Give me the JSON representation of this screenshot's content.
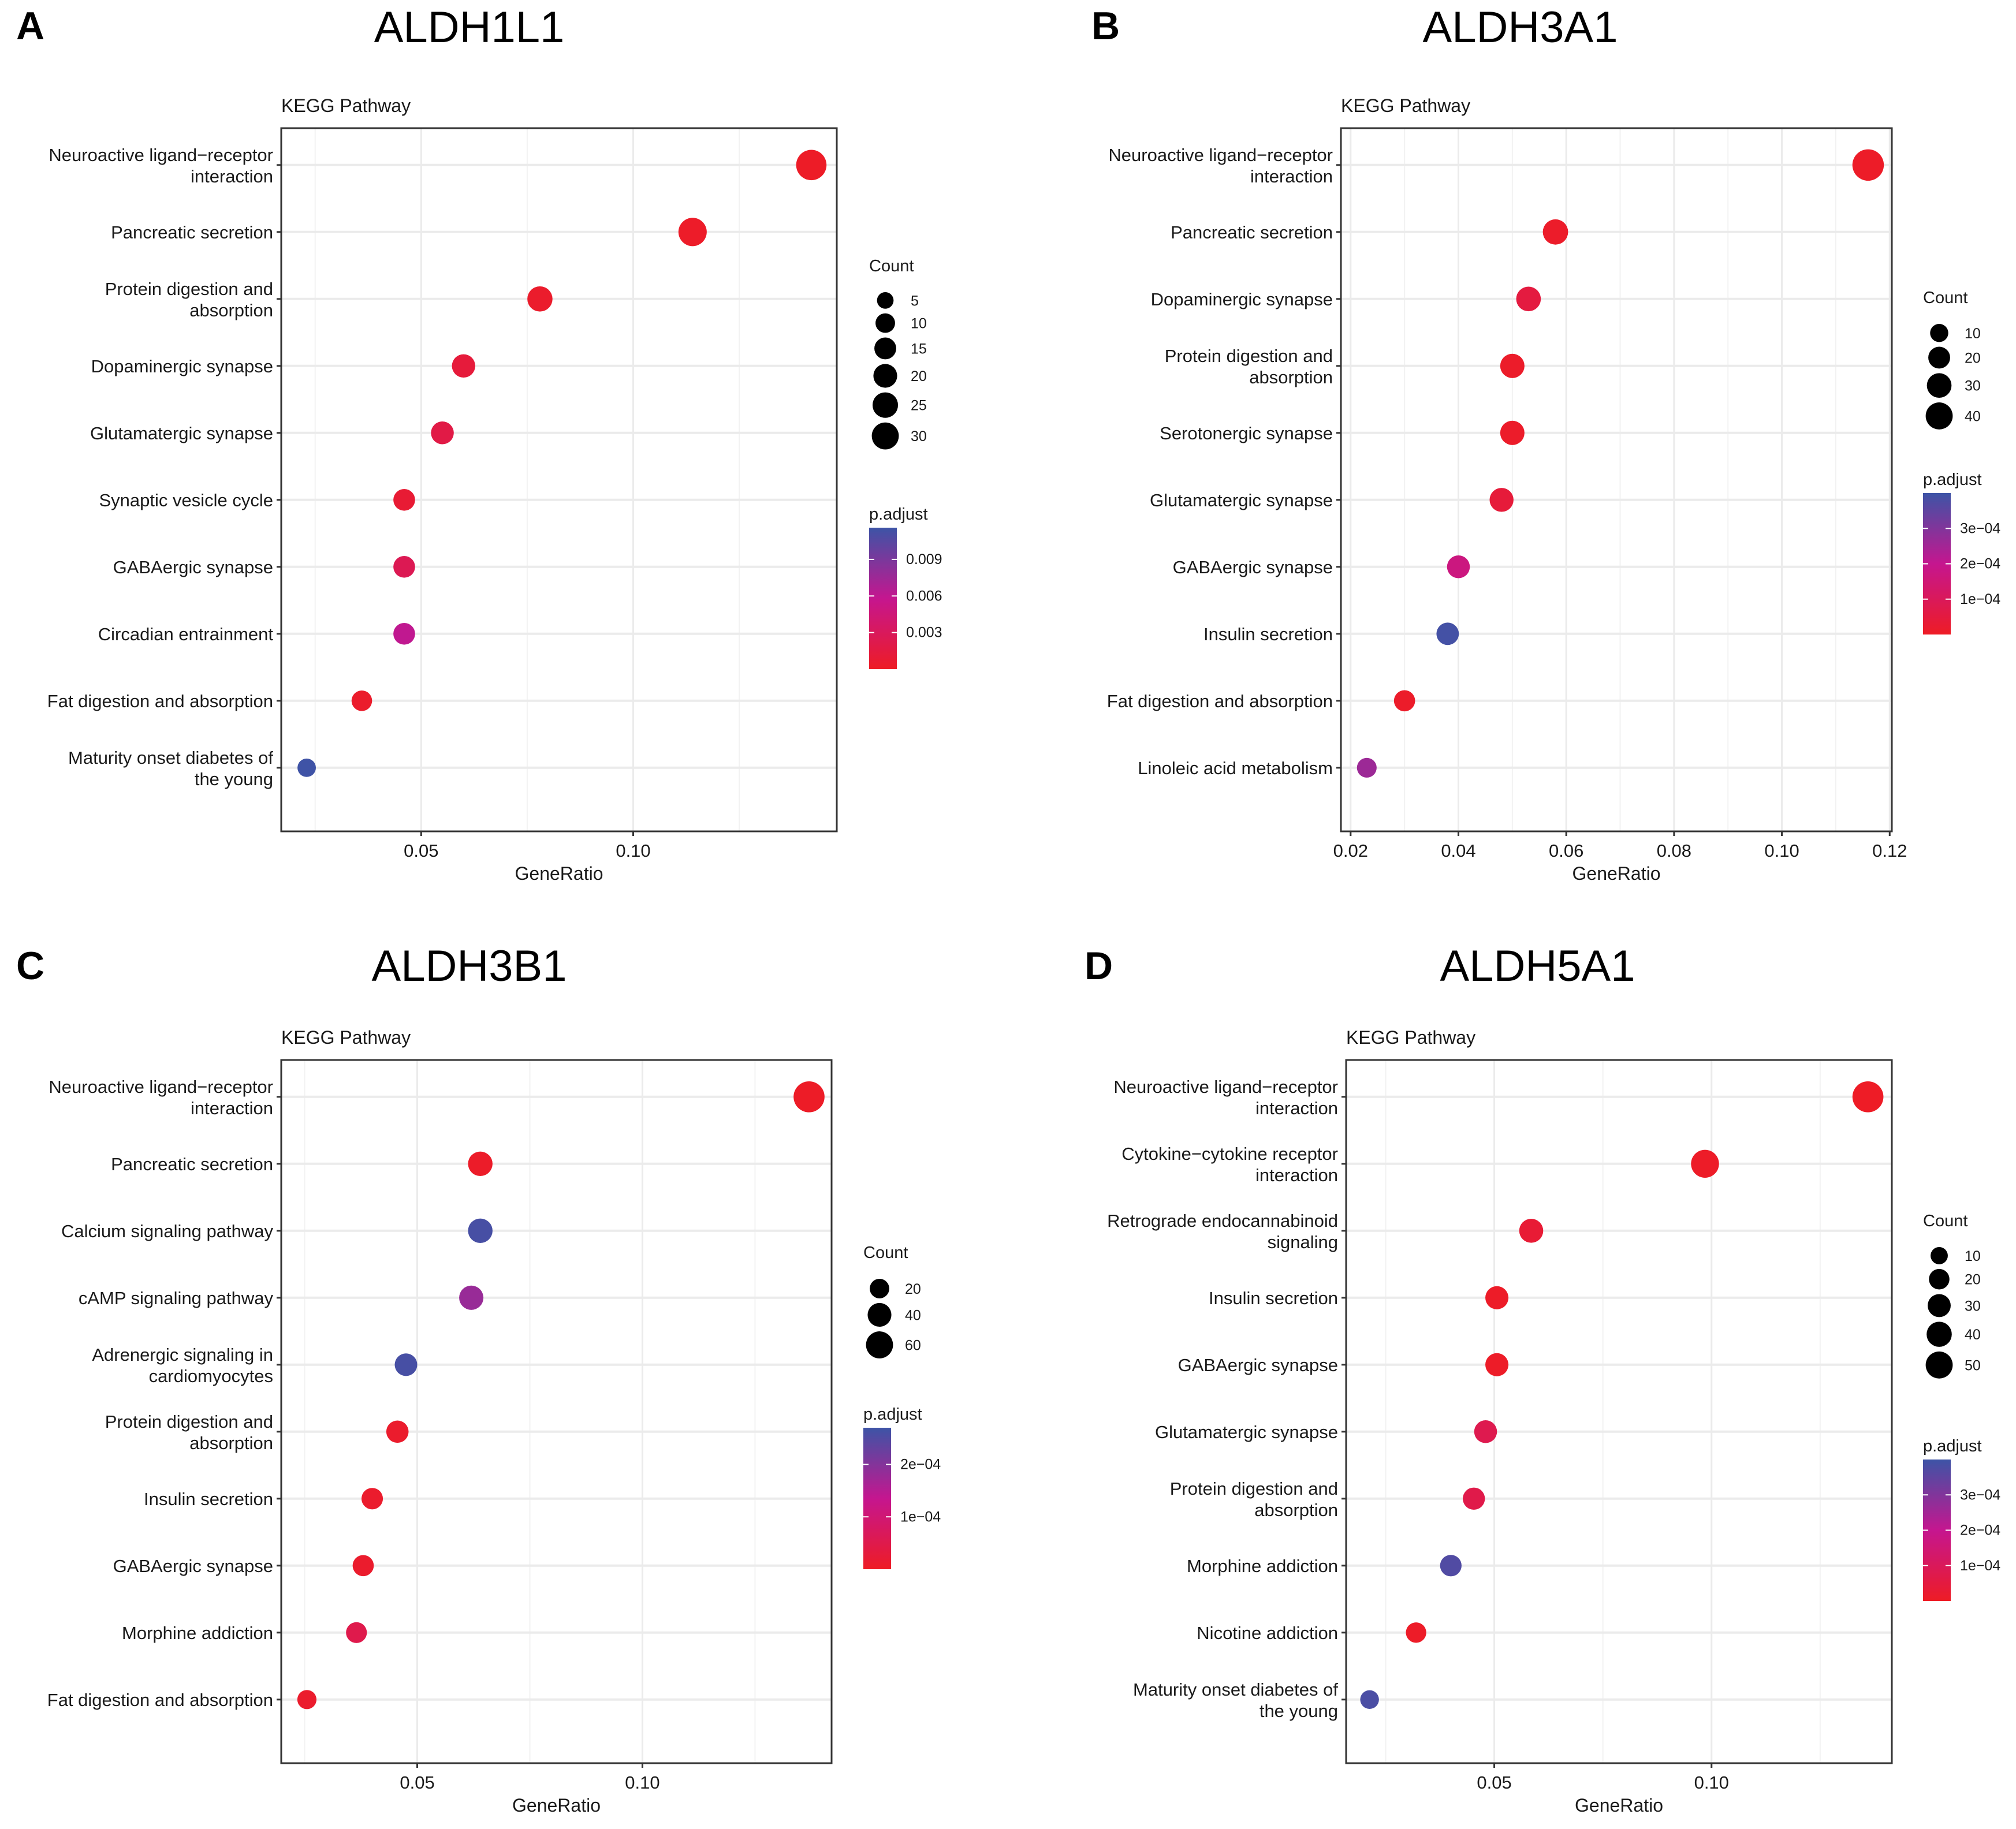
{
  "chart_data": [
    {
      "panel": "A",
      "type": "scatter",
      "title": "ALDH1L1",
      "ylabel": "KEGG Pathway",
      "xlabel": "GeneRatio",
      "xlim": [
        0.017,
        0.148
      ],
      "xticks": [
        0.05,
        0.1
      ],
      "xtick_labels": [
        "0.05",
        "0.10"
      ],
      "xminor": [
        0.025,
        0.075,
        0.125
      ],
      "grid": true,
      "categories": [
        "Neuroactive ligand−receptor\ninteraction",
        "Pancreatic secretion",
        "Protein digestion and\nabsorption",
        "Dopaminergic synapse",
        "Glutamatergic synapse",
        "Synaptic vesicle cycle",
        "GABAergic synapse",
        "Circadian entrainment",
        "Fat digestion and absorption",
        "Maturity onset diabetes of\nthe young"
      ],
      "gene_ratio": [
        0.142,
        0.114,
        0.078,
        0.06,
        0.055,
        0.046,
        0.046,
        0.046,
        0.036,
        0.023
      ],
      "count": [
        31,
        25,
        17,
        13,
        12,
        10,
        10,
        10,
        8,
        5
      ],
      "p_adjust": [
        0.0001,
        0.0002,
        0.0004,
        0.0012,
        0.0018,
        0.0008,
        0.0025,
        0.006,
        0.0004,
        0.0115
      ],
      "size_legend": {
        "title": "Count",
        "values": [
          5,
          10,
          15,
          20,
          25,
          30
        ],
        "labels": [
          "5",
          "10",
          "15",
          "20",
          "25",
          "30"
        ]
      },
      "color_legend": {
        "title": "p.adjust",
        "range": [
          0.0,
          0.0116
        ],
        "ticks": [
          0.009,
          0.006,
          0.003
        ],
        "labels": [
          "0.009",
          "0.006",
          "0.003"
        ]
      }
    },
    {
      "panel": "B",
      "type": "scatter",
      "title": "ALDH3A1",
      "ylabel": "KEGG Pathway",
      "xlabel": "GeneRatio",
      "xlim": [
        0.0182,
        0.1204
      ],
      "xticks": [
        0.02,
        0.04,
        0.06,
        0.08,
        0.1,
        0.12
      ],
      "xtick_labels": [
        "0.02",
        "0.04",
        "0.06",
        "0.08",
        "0.10",
        "0.12"
      ],
      "xminor": [
        0.03,
        0.05,
        0.07,
        0.09,
        0.11
      ],
      "grid": true,
      "categories": [
        "Neuroactive ligand−receptor\ninteraction",
        "Pancreatic secretion",
        "Dopaminergic synapse",
        "Protein digestion and\nabsorption",
        "Serotonergic synapse",
        "Glutamatergic synapse",
        "GABAergic synapse",
        "Insulin secretion",
        "Fat digestion and absorption",
        "Linoleic acid metabolism"
      ],
      "gene_ratio": [
        0.116,
        0.058,
        0.053,
        0.05,
        0.05,
        0.048,
        0.04,
        0.038,
        0.03,
        0.023
      ],
      "count": [
        46,
        23,
        21,
        20,
        20,
        19,
        16,
        15,
        12,
        9
      ],
      "p_adjust": [
        5e-06,
        1e-05,
        5e-05,
        1e-05,
        1e-05,
        4e-05,
        0.00017,
        0.00039,
        1e-05,
        0.00026
      ],
      "size_legend": {
        "title": "Count",
        "values": [
          10,
          20,
          30,
          40
        ],
        "labels": [
          "10",
          "20",
          "30",
          "40"
        ]
      },
      "color_legend": {
        "title": "p.adjust",
        "range": [
          0.0,
          0.0004
        ],
        "ticks": [
          0.0003,
          0.0002,
          0.0001
        ],
        "labels": [
          "3e−04",
          "2e−04",
          "1e−04"
        ]
      }
    },
    {
      "panel": "C",
      "type": "scatter",
      "title": "ALDH3B1",
      "ylabel": "KEGG Pathway",
      "xlabel": "GeneRatio",
      "xlim": [
        0.0198,
        0.142
      ],
      "xticks": [
        0.05,
        0.1
      ],
      "xtick_labels": [
        "0.05",
        "0.10"
      ],
      "xminor": [
        0.025,
        0.075,
        0.125
      ],
      "grid": true,
      "categories": [
        "Neuroactive ligand−receptor\ninteraction",
        "Pancreatic secretion",
        "Calcium signaling pathway",
        "cAMP signaling pathway",
        "Adrenergic signaling in\ncardiomyocytes",
        "Protein digestion and\nabsorption",
        "Insulin secretion",
        "GABAergic synapse",
        "Morphine addiction",
        "Fat digestion and absorption"
      ],
      "gene_ratio": [
        0.137,
        0.064,
        0.064,
        0.062,
        0.0475,
        0.0456,
        0.04,
        0.038,
        0.0365,
        0.0255
      ],
      "count": [
        66,
        31,
        31,
        30,
        23,
        22,
        19,
        18,
        17,
        12
      ],
      "p_adjust": [
        2e-06,
        5e-06,
        0.00026,
        0.00018,
        0.00026,
        1e-05,
        1e-05,
        1e-05,
        5e-05,
        1e-05
      ],
      "size_legend": {
        "title": "Count",
        "values": [
          20,
          40,
          60
        ],
        "labels": [
          "20",
          "40",
          "60"
        ]
      },
      "color_legend": {
        "title": "p.adjust",
        "range": [
          0.0,
          0.00027
        ],
        "ticks": [
          0.0002,
          0.0001
        ],
        "labels": [
          "2e−04",
          "1e−04"
        ]
      }
    },
    {
      "panel": "D",
      "type": "scatter",
      "title": "ALDH5A1",
      "ylabel": "KEGG Pathway",
      "xlabel": "GeneRatio",
      "xlim": [
        0.0159,
        0.1415
      ],
      "xticks": [
        0.05,
        0.1
      ],
      "xtick_labels": [
        "0.05",
        "0.10"
      ],
      "xminor": [
        0.025,
        0.075,
        0.125
      ],
      "grid": true,
      "categories": [
        "Neuroactive ligand−receptor\ninteraction",
        "Cytokine−cytokine receptor\ninteraction",
        "Retrograde endocannabinoid\nsignaling",
        "Insulin secretion",
        "GABAergic synapse",
        "Glutamatergic synapse",
        "Protein digestion and\nabsorption",
        "Morphine addiction",
        "Nicotine addiction",
        "Maturity onset diabetes of\nthe young"
      ],
      "gene_ratio": [
        0.136,
        0.0985,
        0.0585,
        0.0506,
        0.0506,
        0.048,
        0.0453,
        0.04,
        0.032,
        0.0213
      ],
      "count": [
        55,
        40,
        24,
        21,
        21,
        20,
        18,
        16,
        13,
        9
      ],
      "p_adjust": [
        2e-06,
        5e-06,
        3e-05,
        5e-06,
        5e-06,
        8e-05,
        7e-05,
        0.00037,
        5e-06,
        0.00038
      ],
      "size_legend": {
        "title": "Count",
        "values": [
          10,
          20,
          30,
          40,
          50
        ],
        "labels": [
          "10",
          "20",
          "30",
          "40",
          "50"
        ]
      },
      "color_legend": {
        "title": "p.adjust",
        "range": [
          0.0,
          0.0004
        ],
        "ticks": [
          0.0003,
          0.0002,
          0.0001
        ],
        "labels": [
          "3e−04",
          "2e−04",
          "1e−04"
        ]
      }
    }
  ],
  "colors": {
    "low": "#ee1c25",
    "mid": "#c5168f",
    "high": "#3d54a6",
    "grid": "#ebebeb",
    "axis": "#333333"
  }
}
